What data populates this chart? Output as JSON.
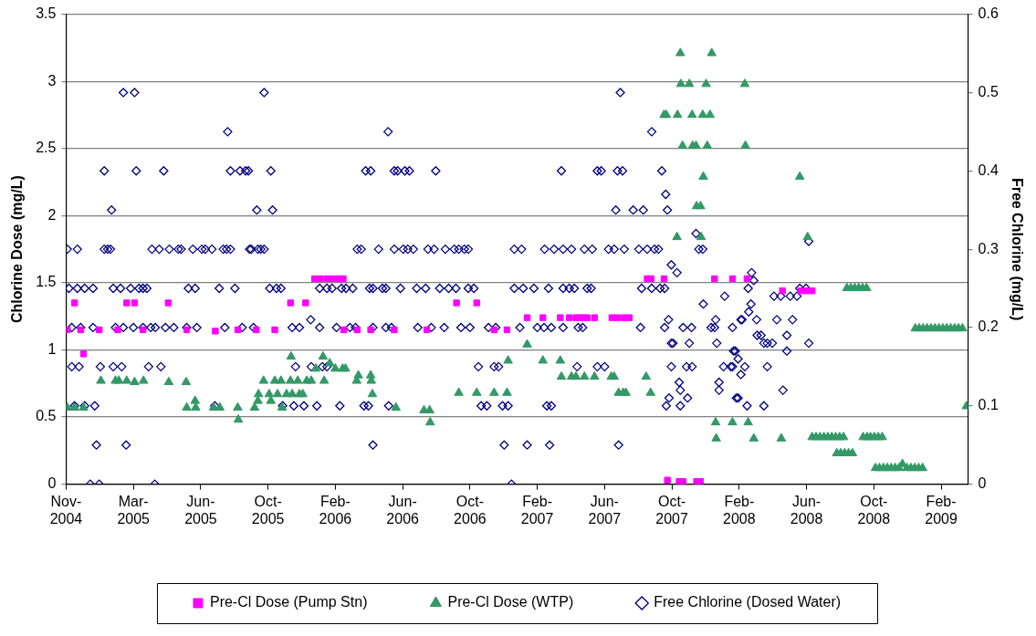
{
  "chart_data": {
    "type": "scatter",
    "ylabel": "Chlorine Dose (mg/L)",
    "y2label": "Free Chlorine (mg/L)",
    "xlim": [
      "2004-11-01",
      "2009-03-28"
    ],
    "xticks": [
      {
        "value": "2004-11-01",
        "label": "Nov-2004"
      },
      {
        "value": "2005-03-01",
        "label": "Mar-2005"
      },
      {
        "value": "2005-06-29",
        "label": "Jun-2005"
      },
      {
        "value": "2005-10-27",
        "label": "Oct-2005"
      },
      {
        "value": "2006-02-24",
        "label": "Feb-2006"
      },
      {
        "value": "2006-06-24",
        "label": "Jun-2006"
      },
      {
        "value": "2006-10-22",
        "label": "Oct-2006"
      },
      {
        "value": "2007-02-19",
        "label": "Feb-2007"
      },
      {
        "value": "2007-06-19",
        "label": "Jun-2007"
      },
      {
        "value": "2007-10-17",
        "label": "Oct-2007"
      },
      {
        "value": "2008-02-14",
        "label": "Feb-2008"
      },
      {
        "value": "2008-06-13",
        "label": "Jun-2008"
      },
      {
        "value": "2008-10-11",
        "label": "Oct-2008"
      },
      {
        "value": "2009-02-08",
        "label": "Feb-2009"
      }
    ],
    "ylim": [
      0,
      3.5
    ],
    "yticks": [
      0,
      0.5,
      1,
      1.5,
      2,
      2.5,
      3,
      3.5
    ],
    "y2lim": [
      0,
      0.6
    ],
    "y2ticks": [
      0,
      0.1,
      0.2,
      0.3,
      0.4,
      0.5,
      0.6
    ],
    "grid": "y",
    "legend": "bottom",
    "series": [
      {
        "name": "Pre-Cl Dose (Pump Stn)",
        "color": "#ff00ff",
        "marker": "square",
        "x": [
          "2004-11-03",
          "2004-11-16",
          "2004-11-27",
          "2004-12-02",
          "2004-12-30",
          "2005-02-01",
          "2005-02-17",
          "2005-03-03",
          "2005-03-18",
          "2005-05-02",
          "2005-06-04",
          "2005-07-25",
          "2005-09-03",
          "2005-10-06",
          "2005-11-08",
          "2005-12-06",
          "2006-01-02",
          "2006-01-18",
          "2006-01-28",
          "2006-02-09",
          "2006-02-18",
          "2006-03-01",
          "2006-03-10",
          "2006-03-11",
          "2006-04-04",
          "2006-04-28",
          "2006-06-09",
          "2006-08-06",
          "2006-09-28",
          "2006-11-03",
          "2006-12-04",
          "2006-12-27",
          "2007-02-01",
          "2007-03-01",
          "2007-04-01",
          "2007-04-17",
          "2007-04-29",
          "2007-05-06",
          "2007-05-12",
          "2007-05-19",
          "2007-06-01",
          "2007-07-02",
          "2007-07-12",
          "2007-07-24",
          "2007-08-02",
          "2007-09-03",
          "2007-09-10",
          "2007-10-03",
          "2007-10-09",
          "2007-10-30",
          "2007-11-06",
          "2007-11-30",
          "2007-12-07",
          "2008-01-01",
          "2008-02-02",
          "2008-02-28",
          "2008-05-01",
          "2008-06-03",
          "2008-06-13",
          "2008-06-23"
        ],
        "values": [
          1.15,
          1.35,
          1.15,
          0.97,
          1.15,
          1.15,
          1.35,
          1.35,
          1.15,
          1.35,
          1.15,
          1.14,
          1.15,
          1.15,
          1.15,
          1.35,
          1.35,
          1.53,
          1.53,
          1.53,
          1.53,
          1.53,
          1.53,
          1.15,
          1.15,
          1.15,
          1.15,
          1.15,
          1.35,
          1.35,
          1.15,
          1.15,
          1.24,
          1.24,
          1.24,
          1.24,
          1.24,
          1.24,
          1.24,
          1.24,
          1.24,
          1.24,
          1.24,
          1.24,
          1.24,
          1.53,
          1.53,
          1.53,
          0.03,
          0.02,
          0.02,
          0.02,
          0.02,
          1.53,
          1.53,
          1.53,
          1.44,
          1.44,
          1.44,
          1.44
        ]
      },
      {
        "name": "Pre-Cl Dose (WTP)",
        "color": "#339966",
        "marker": "triangle",
        "x": [
          "2004-11-03",
          "2004-11-16",
          "2004-12-02",
          "2005-01-02",
          "2005-01-28",
          "2005-02-03",
          "2005-02-17",
          "2005-03-03",
          "2005-03-19",
          "2005-05-03",
          "2005-06-03",
          "2005-06-04",
          "2005-06-19",
          "2005-06-20",
          "2005-07-22",
          "2005-08-02",
          "2005-09-03",
          "2005-09-04",
          "2005-10-03",
          "2005-10-09",
          "2005-10-10",
          "2005-10-19",
          "2005-10-29",
          "2005-11-01",
          "2005-11-08",
          "2005-11-13",
          "2005-11-19",
          "2005-11-21",
          "2005-11-29",
          "2005-12-06",
          "2005-12-07",
          "2005-12-09",
          "2005-12-19",
          "2005-12-22",
          "2005-12-28",
          "2006-01-04",
          "2006-01-12",
          "2006-01-20",
          "2006-02-02",
          "2006-02-04",
          "2006-02-14",
          "2006-02-24",
          "2006-03-09",
          "2006-03-14",
          "2006-04-03",
          "2006-04-06",
          "2006-04-28",
          "2006-04-29",
          "2006-05-01",
          "2006-06-12",
          "2006-08-01",
          "2006-08-11",
          "2006-08-12",
          "2006-10-02",
          "2006-11-03",
          "2006-12-04",
          "2006-12-27",
          "2006-12-29",
          "2007-02-01",
          "2007-03-01",
          "2007-04-01",
          "2007-04-03",
          "2007-04-21",
          "2007-04-29",
          "2007-05-14",
          "2007-06-01",
          "2007-07-01",
          "2007-07-06",
          "2007-07-14",
          "2007-07-22",
          "2007-07-27",
          "2007-09-01",
          "2007-09-09",
          "2007-10-03",
          "2007-10-07",
          "2007-10-26",
          "2007-10-27",
          "2007-11-01",
          "2007-11-02",
          "2007-11-05",
          "2007-11-17",
          "2007-11-22",
          "2007-11-23",
          "2007-11-29",
          "2007-11-30",
          "2007-12-07",
          "2007-12-08",
          "2007-12-11",
          "2007-12-12",
          "2007-12-17",
          "2007-12-19",
          "2007-12-24",
          "2007-12-27",
          "2008-01-03",
          "2008-01-04",
          "2008-02-02",
          "2008-02-24",
          "2008-02-25",
          "2008-03-01",
          "2008-03-11",
          "2008-04-29",
          "2008-06-01",
          "2008-06-15",
          "2008-06-23",
          "2008-06-30",
          "2008-07-07",
          "2008-07-14",
          "2008-07-21",
          "2008-07-28",
          "2008-08-04",
          "2008-08-11",
          "2008-08-18",
          "2008-08-06",
          "2008-08-13",
          "2008-08-20",
          "2008-08-27",
          "2008-09-03",
          "2008-08-24",
          "2008-08-31",
          "2008-09-07",
          "2008-09-14",
          "2008-09-21",
          "2008-09-28",
          "2008-09-22",
          "2008-09-29",
          "2008-10-05",
          "2008-10-12",
          "2008-10-19",
          "2008-10-26",
          "2008-10-14",
          "2008-10-21",
          "2008-10-28",
          "2008-11-04",
          "2008-11-11",
          "2008-11-18",
          "2008-11-25",
          "2008-12-01",
          "2008-12-09",
          "2008-12-16",
          "2008-12-23",
          "2008-12-30",
          "2009-01-06",
          "2008-12-24",
          "2008-12-31",
          "2009-01-07",
          "2009-01-14",
          "2009-01-21",
          "2009-01-28",
          "2009-02-04",
          "2009-02-11",
          "2009-02-18",
          "2009-02-25",
          "2009-03-04",
          "2009-03-11",
          "2009-03-18",
          "2009-03-25"
        ],
        "values": [
          0.57,
          0.57,
          0.57,
          0.77,
          0.77,
          0.77,
          0.77,
          0.76,
          0.77,
          0.76,
          0.76,
          0.57,
          0.62,
          0.57,
          0.57,
          0.57,
          0.57,
          0.48,
          0.57,
          0.62,
          0.67,
          0.77,
          0.67,
          0.62,
          0.77,
          0.67,
          0.77,
          0.57,
          0.67,
          0.77,
          0.95,
          0.67,
          0.77,
          0.67,
          0.67,
          0.77,
          0.77,
          0.86,
          0.95,
          0.77,
          0.9,
          0.86,
          0.86,
          0.86,
          0.77,
          0.81,
          0.81,
          0.77,
          0.67,
          0.57,
          0.55,
          0.55,
          0.46,
          0.68,
          0.68,
          0.68,
          0.68,
          0.92,
          1.04,
          0.92,
          0.92,
          0.8,
          0.8,
          0.8,
          0.8,
          0.8,
          0.8,
          0.8,
          0.68,
          0.68,
          0.68,
          0.8,
          0.68,
          2.75,
          2.75,
          1.84,
          2.75,
          3.21,
          2.98,
          2.52,
          2.98,
          2.75,
          2.52,
          2.52,
          2.07,
          2.07,
          1.84,
          2.75,
          2.29,
          2.98,
          2.52,
          2.75,
          3.21,
          0.46,
          0.34,
          0.46,
          2.98,
          2.52,
          0.46,
          0.34,
          0.34,
          2.29,
          1.84,
          0.35,
          0.35,
          0.35,
          0.35,
          0.35,
          0.35,
          0.35,
          0.35,
          0.35,
          0.23,
          0.23,
          0.23,
          0.23,
          0.23,
          1.46,
          1.46,
          1.46,
          1.46,
          1.46,
          1.46,
          0.35,
          0.35,
          0.35,
          0.35,
          0.35,
          0.35,
          0.12,
          0.12,
          0.12,
          0.12,
          0.12,
          0.12,
          0.12,
          0.15,
          0.12,
          0.12,
          0.12,
          0.12,
          0.12,
          1.16,
          1.16,
          1.16,
          1.16,
          1.16,
          1.16,
          1.16,
          1.16,
          1.16,
          1.16,
          1.16,
          1.16,
          1.16,
          0.58
        ]
      },
      {
        "name": "Free Chlorine (Dosed Water)",
        "color": "#000080",
        "marker": "diamond",
        "axis": "y2",
        "x": [
          "2005-02-11",
          "2005-03-03",
          "2005-10-20",
          "2007-07-17",
          "2005-08-16",
          "2006-05-29",
          "2007-09-11",
          "2005-01-08",
          "2005-03-06",
          "2005-04-24",
          "2005-08-21",
          "2005-09-07",
          "2005-09-17",
          "2005-09-22",
          "2005-11-01",
          "2006-04-19",
          "2006-04-28",
          "2006-06-09",
          "2006-06-15",
          "2006-06-28",
          "2006-07-06",
          "2006-08-22",
          "2007-04-03",
          "2007-06-06",
          "2007-06-13",
          "2007-07-12",
          "2007-07-21",
          "2007-09-29",
          "2007-10-06",
          "2005-01-21",
          "2005-10-07",
          "2005-11-04",
          "2007-07-09",
          "2007-08-09",
          "2007-08-27",
          "2007-10-09",
          "2007-11-29",
          "2008-06-17",
          "2004-11-03",
          "2004-11-21",
          "2005-01-08",
          "2005-01-14",
          "2005-01-19",
          "2005-04-03",
          "2005-04-16",
          "2005-05-04",
          "2005-05-20",
          "2005-05-25",
          "2005-06-15",
          "2005-07-01",
          "2005-07-07",
          "2005-07-19",
          "2005-08-08",
          "2005-08-14",
          "2005-08-21",
          "2005-09-24",
          "2005-09-27",
          "2005-10-09",
          "2005-10-14",
          "2005-10-20",
          "2006-04-04",
          "2006-04-11",
          "2006-05-12",
          "2006-06-09",
          "2006-06-25",
          "2006-07-03",
          "2006-07-13",
          "2006-08-08",
          "2006-08-19",
          "2006-09-08",
          "2006-09-24",
          "2006-10-02",
          "2006-10-12",
          "2006-10-19",
          "2007-01-09",
          "2007-01-22",
          "2007-03-04",
          "2007-03-21",
          "2007-04-06",
          "2007-04-21",
          "2007-05-14",
          "2007-05-28",
          "2007-06-26",
          "2007-07-06",
          "2007-07-24",
          "2007-08-19",
          "2007-09-03",
          "2007-09-16",
          "2007-09-23",
          "2007-12-04",
          "2007-12-11",
          "2007-10-16",
          "2007-10-26",
          "2008-03-07",
          "2008-03-11",
          "2004-11-06",
          "2004-11-21",
          "2004-12-04",
          "2004-12-19",
          "2005-01-24",
          "2005-02-06",
          "2005-02-24",
          "2005-03-11",
          "2005-03-18",
          "2005-03-25",
          "2005-06-07",
          "2005-06-19",
          "2005-08-01",
          "2005-08-29",
          "2005-10-30",
          "2005-11-11",
          "2005-11-19",
          "2006-01-27",
          "2006-02-09",
          "2006-02-18",
          "2006-03-07",
          "2006-03-15",
          "2006-03-27",
          "2006-04-26",
          "2006-05-02",
          "2006-05-19",
          "2006-05-25",
          "2006-06-20",
          "2006-07-19",
          "2006-08-04",
          "2006-08-29",
          "2006-09-14",
          "2006-09-27",
          "2006-10-19",
          "2006-10-29",
          "2007-01-09",
          "2007-01-25",
          "2007-02-13",
          "2007-03-11",
          "2007-04-06",
          "2007-04-17",
          "2007-04-26",
          "2007-05-19",
          "2007-05-26",
          "2007-08-24",
          "2007-09-11",
          "2007-09-26",
          "2007-10-04",
          "2008-03-01",
          "2008-06-01",
          "2008-06-12",
          "2008-01-19",
          "2008-04-16",
          "2008-04-28",
          "2008-05-15",
          "2008-05-27",
          "2007-12-12",
          "2008-03-06",
          "2008-03-02",
          "2006-01-11",
          "2007-10-11",
          "2008-01-03",
          "2008-02-17",
          "2008-02-19",
          "2008-03-16",
          "2008-04-21",
          "2008-05-19",
          "2004-11-11",
          "2004-11-27",
          "2004-12-19",
          "2005-01-28",
          "2005-02-11",
          "2005-03-01",
          "2005-03-18",
          "2005-04-01",
          "2005-04-09",
          "2005-04-27",
          "2005-05-12",
          "2005-06-04",
          "2005-06-22",
          "2005-08-11",
          "2005-09-11",
          "2005-10-01",
          "2005-12-09",
          "2005-12-22",
          "2006-01-27",
          "2006-02-26",
          "2006-03-22",
          "2006-04-01",
          "2006-05-02",
          "2006-05-25",
          "2006-06-04",
          "2006-07-21",
          "2006-08-14",
          "2006-09-06",
          "2006-10-06",
          "2006-10-22",
          "2006-11-24",
          "2006-12-07",
          "2007-01-19",
          "2007-02-19",
          "2007-03-03",
          "2007-03-16",
          "2007-04-06",
          "2007-05-03",
          "2007-05-11",
          "2007-08-22",
          "2007-10-04",
          "2007-11-06",
          "2007-11-21",
          "2007-12-26",
          "2008-01-01",
          "2008-02-02",
          "2008-03-17",
          "2008-03-24",
          "2008-05-09",
          "2007-10-16",
          "2007-10-19",
          "2007-11-17",
          "2008-01-05",
          "2008-03-29",
          "2008-04-04",
          "2008-04-13",
          "2008-06-17",
          "2008-02-07",
          "2008-02-04",
          "2008-05-09",
          "2008-02-12",
          "2004-11-11",
          "2004-11-24",
          "2005-01-01",
          "2005-01-24",
          "2005-02-08",
          "2005-03-28",
          "2005-04-19",
          "2005-12-15",
          "2006-01-12",
          "2006-02-01",
          "2006-02-09",
          "2006-11-06",
          "2006-12-04",
          "2006-12-12",
          "2007-05-01",
          "2007-06-06",
          "2007-06-19",
          "2007-10-16",
          "2007-11-12",
          "2007-11-22",
          "2008-01-17",
          "2008-02-02",
          "2008-01-30",
          "2008-02-24",
          "2008-04-04",
          "2008-02-17",
          "2007-10-30",
          "2008-01-09",
          "2007-11-01",
          "2008-01-09",
          "2008-05-02",
          "2007-10-12",
          "2007-11-14",
          "2008-02-12",
          "2008-02-09",
          "2004-11-16",
          "2004-12-04",
          "2004-12-22",
          "2005-07-24",
          "2005-11-22",
          "2005-12-12",
          "2005-12-30",
          "2006-01-22",
          "2006-03-04",
          "2006-04-16",
          "2006-04-24",
          "2006-05-30",
          "2006-11-11",
          "2006-11-21",
          "2006-12-19",
          "2006-12-29",
          "2007-03-08",
          "2007-03-16",
          "2007-10-07",
          "2007-11-01",
          "2008-02-28",
          "2008-03-29",
          "2004-12-25",
          "2005-02-16",
          "2006-05-02",
          "2006-12-22",
          "2007-02-01",
          "2007-03-13",
          "2007-07-14",
          "2004-12-14",
          "2004-12-30",
          "2005-04-08",
          "2007-01-04"
        ],
        "values": [
          0.5,
          0.5,
          0.5,
          0.5,
          0.45,
          0.45,
          0.45,
          0.4,
          0.4,
          0.4,
          0.4,
          0.4,
          0.4,
          0.4,
          0.4,
          0.4,
          0.4,
          0.4,
          0.4,
          0.4,
          0.4,
          0.4,
          0.4,
          0.4,
          0.4,
          0.4,
          0.4,
          0.4,
          0.37,
          0.35,
          0.35,
          0.35,
          0.35,
          0.35,
          0.35,
          0.35,
          0.32,
          0.31,
          0.3,
          0.3,
          0.3,
          0.3,
          0.3,
          0.3,
          0.3,
          0.3,
          0.3,
          0.3,
          0.3,
          0.3,
          0.3,
          0.3,
          0.3,
          0.3,
          0.3,
          0.3,
          0.3,
          0.3,
          0.3,
          0.3,
          0.3,
          0.3,
          0.3,
          0.3,
          0.3,
          0.3,
          0.3,
          0.3,
          0.3,
          0.3,
          0.3,
          0.3,
          0.3,
          0.3,
          0.3,
          0.3,
          0.3,
          0.3,
          0.3,
          0.3,
          0.3,
          0.3,
          0.3,
          0.3,
          0.3,
          0.3,
          0.3,
          0.3,
          0.3,
          0.3,
          0.3,
          0.28,
          0.27,
          0.27,
          0.26,
          0.25,
          0.25,
          0.25,
          0.25,
          0.25,
          0.25,
          0.25,
          0.25,
          0.25,
          0.25,
          0.25,
          0.25,
          0.25,
          0.25,
          0.25,
          0.25,
          0.25,
          0.25,
          0.25,
          0.25,
          0.25,
          0.25,
          0.25,
          0.25,
          0.25,
          0.25,
          0.25,
          0.25,
          0.25,
          0.25,
          0.25,
          0.25,
          0.25,
          0.25,
          0.25,
          0.25,
          0.25,
          0.25,
          0.25,
          0.25,
          0.25,
          0.25,
          0.25,
          0.25,
          0.25,
          0.25,
          0.25,
          0.25,
          0.25,
          0.25,
          0.25,
          0.24,
          0.24,
          0.24,
          0.24,
          0.24,
          0.23,
          0.23,
          0.22,
          0.21,
          0.21,
          0.21,
          0.21,
          0.21,
          0.21,
          0.21,
          0.21,
          0.2,
          0.2,
          0.2,
          0.2,
          0.2,
          0.2,
          0.2,
          0.2,
          0.2,
          0.2,
          0.2,
          0.2,
          0.2,
          0.2,
          0.2,
          0.2,
          0.2,
          0.2,
          0.2,
          0.2,
          0.2,
          0.2,
          0.2,
          0.2,
          0.2,
          0.2,
          0.2,
          0.2,
          0.2,
          0.2,
          0.2,
          0.2,
          0.2,
          0.2,
          0.2,
          0.2,
          0.2,
          0.2,
          0.2,
          0.2,
          0.2,
          0.2,
          0.2,
          0.2,
          0.2,
          0.2,
          0.19,
          0.19,
          0.19,
          0.18,
          0.18,
          0.18,
          0.18,
          0.18,
          0.18,
          0.18,
          0.18,
          0.17,
          0.17,
          0.17,
          0.16,
          0.15,
          0.15,
          0.15,
          0.15,
          0.15,
          0.15,
          0.15,
          0.15,
          0.15,
          0.15,
          0.15,
          0.15,
          0.15,
          0.15,
          0.15,
          0.15,
          0.15,
          0.15,
          0.15,
          0.15,
          0.15,
          0.15,
          0.15,
          0.15,
          0.15,
          0.14,
          0.13,
          0.13,
          0.12,
          0.12,
          0.12,
          0.11,
          0.11,
          0.11,
          0.11,
          0.1,
          0.1,
          0.1,
          0.1,
          0.1,
          0.1,
          0.1,
          0.1,
          0.1,
          0.1,
          0.1,
          0.1,
          0.1,
          0.1,
          0.1,
          0.1,
          0.1,
          0.1,
          0.1,
          0.1,
          0.1,
          0.1,
          0.05,
          0.05,
          0.05,
          0.05,
          0.05,
          0.05,
          0.05,
          0,
          0,
          0,
          0
        ]
      }
    ]
  }
}
